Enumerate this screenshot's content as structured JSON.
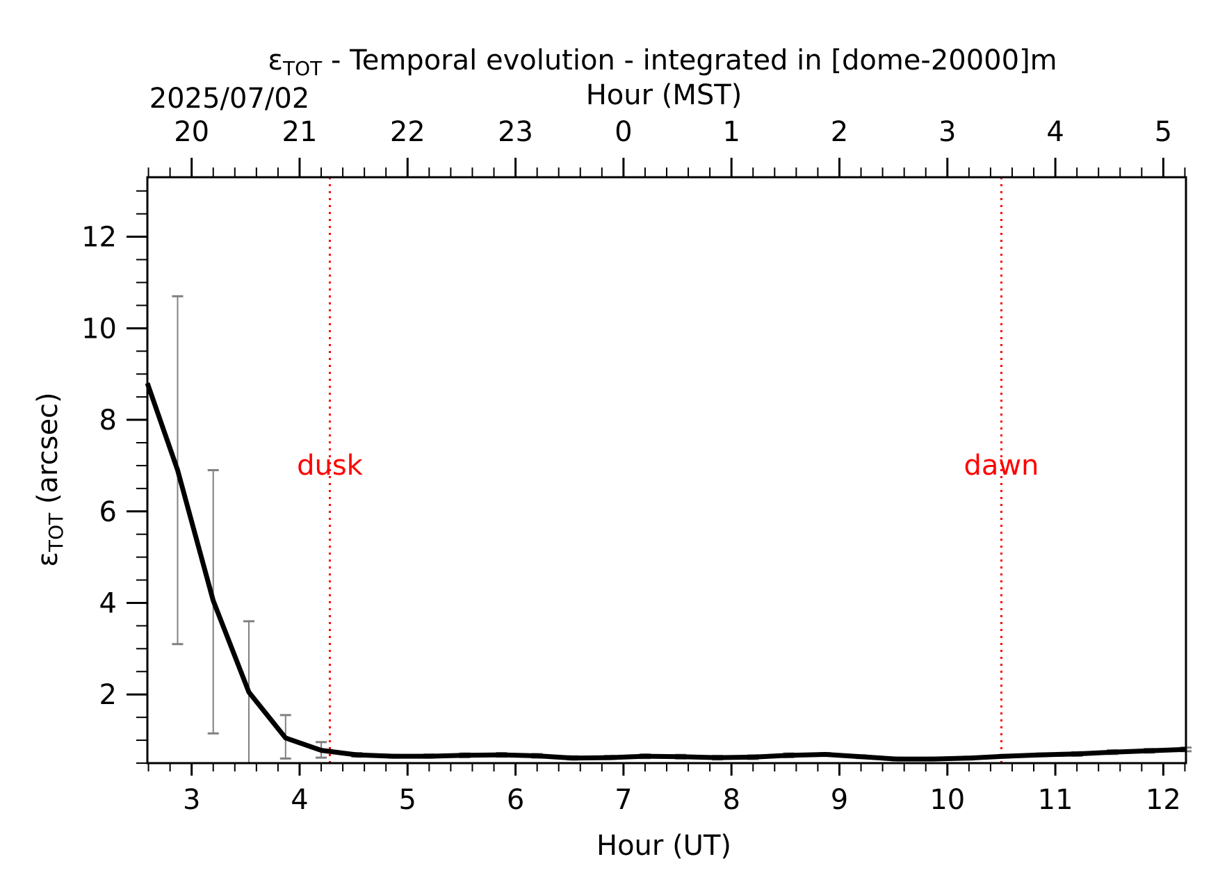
{
  "chart_data": {
    "type": "line",
    "title_symbol": "ε",
    "title_subscript": "TOT",
    "title_rest": " - Temporal evolution - integrated in [dome-20000]m",
    "date_label": "2025/07/02",
    "top_axis_label": "Hour (MST)",
    "xlabel": "Hour (UT)",
    "ylabel_symbol": "ε",
    "ylabel_subscript": "TOT",
    "ylabel_rest": " (arcsec)",
    "xlim": [
      2.59,
      12.21
    ],
    "ylim": [
      0.5,
      13.3
    ],
    "x_ticks": [
      3,
      4,
      5,
      6,
      7,
      8,
      9,
      10,
      11,
      12
    ],
    "x_tick_labels": [
      "3",
      "4",
      "5",
      "6",
      "7",
      "8",
      "9",
      "10",
      "11",
      "12"
    ],
    "y_ticks": [
      2,
      4,
      6,
      8,
      10,
      12
    ],
    "y_tick_labels": [
      "2",
      "4",
      "6",
      "8",
      "10",
      "12"
    ],
    "top_ticks_ut": [
      3,
      4,
      5,
      6,
      7,
      8,
      9,
      10,
      11,
      12
    ],
    "top_tick_labels": [
      "20",
      "21",
      "22",
      "23",
      "0",
      "1",
      "2",
      "3",
      "4",
      "5"
    ],
    "series": [
      {
        "color": "#000000",
        "x": [
          2.59,
          2.87,
          3.2,
          3.53,
          3.87,
          4.2,
          4.53,
          4.87,
          5.2,
          5.53,
          5.87,
          6.2,
          6.53,
          6.87,
          7.2,
          7.53,
          7.87,
          8.2,
          8.53,
          8.87,
          9.2,
          9.53,
          9.87,
          10.2,
          10.53,
          10.87,
          11.2,
          11.53,
          11.87,
          12.21
        ],
        "y": [
          8.8,
          6.9,
          4.05,
          2.05,
          1.05,
          0.78,
          0.68,
          0.65,
          0.65,
          0.67,
          0.68,
          0.66,
          0.61,
          0.62,
          0.65,
          0.64,
          0.62,
          0.63,
          0.67,
          0.69,
          0.64,
          0.59,
          0.59,
          0.61,
          0.65,
          0.68,
          0.7,
          0.74,
          0.77,
          0.8
        ],
        "err_low": [
          null,
          3.1,
          1.15,
          0.5,
          0.6,
          0.62,
          0.64,
          0.62,
          0.62,
          0.63,
          0.64,
          0.62,
          0.58,
          0.59,
          0.61,
          0.6,
          0.58,
          0.59,
          0.63,
          0.66,
          0.61,
          0.56,
          0.56,
          0.58,
          0.62,
          0.65,
          0.66,
          0.7,
          0.73,
          0.76
        ],
        "err_high": [
          null,
          10.7,
          6.9,
          3.6,
          1.55,
          0.96,
          0.72,
          0.68,
          0.69,
          0.71,
          0.72,
          0.7,
          0.65,
          0.66,
          0.69,
          0.68,
          0.66,
          0.67,
          0.71,
          0.72,
          0.67,
          0.62,
          0.62,
          0.64,
          0.68,
          0.71,
          0.74,
          0.78,
          0.81,
          0.84
        ]
      }
    ],
    "error_bar_color": "#808080",
    "markers": [
      {
        "label": "dusk",
        "x": 4.28,
        "label_y": 6.8,
        "color": "#ff0000"
      },
      {
        "label": "dawn",
        "x": 10.5,
        "label_y": 6.8,
        "color": "#ff0000"
      }
    ],
    "grid": false,
    "legend": "none"
  }
}
